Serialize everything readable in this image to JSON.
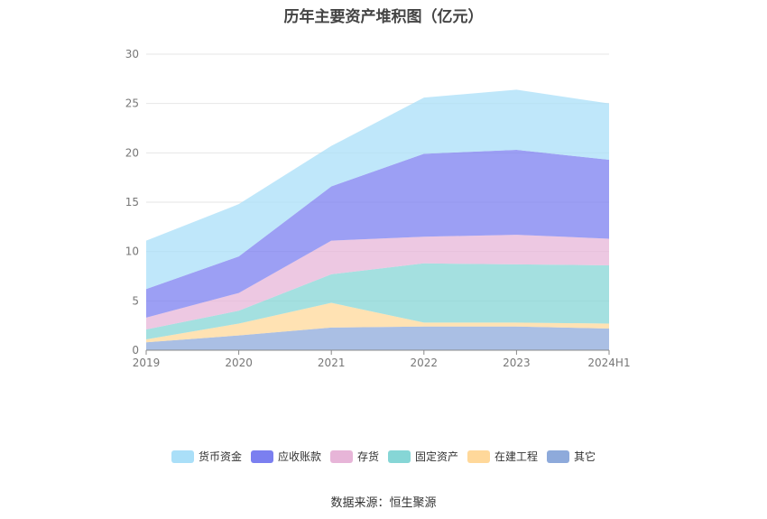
{
  "title": "历年主要资产堆积图（亿元）",
  "source": "数据来源：恒生聚源",
  "chart_data": {
    "type": "area",
    "stacked": true,
    "title": "历年主要资产堆积图（亿元）",
    "xlabel": "",
    "ylabel": "",
    "ylim": [
      0,
      30
    ],
    "yticks": [
      0,
      5,
      10,
      15,
      20,
      25,
      30
    ],
    "categories": [
      "2019",
      "2020",
      "2021",
      "2022",
      "2023",
      "2024H1"
    ],
    "legend_position": "bottom",
    "series": [
      {
        "name": "其它",
        "color": "#8eaadb",
        "values": [
          0.8,
          1.5,
          2.3,
          2.4,
          2.4,
          2.2
        ]
      },
      {
        "name": "在建工程",
        "color": "#ffd89a",
        "values": [
          0.3,
          1.2,
          2.5,
          0.4,
          0.4,
          0.5
        ]
      },
      {
        "name": "固定资产",
        "color": "#86d6d6",
        "values": [
          1.0,
          1.3,
          2.9,
          6.0,
          5.9,
          5.9
        ]
      },
      {
        "name": "存货",
        "color": "#e7b5d8",
        "values": [
          1.2,
          1.8,
          3.4,
          2.7,
          3.0,
          2.7
        ]
      },
      {
        "name": "应收账款",
        "color": "#7b7ff0",
        "values": [
          2.9,
          3.7,
          5.5,
          8.4,
          8.6,
          8.0
        ]
      },
      {
        "name": "货币资金",
        "color": "#aadff8",
        "values": [
          4.9,
          5.3,
          4.1,
          5.7,
          6.1,
          5.7
        ]
      }
    ]
  }
}
